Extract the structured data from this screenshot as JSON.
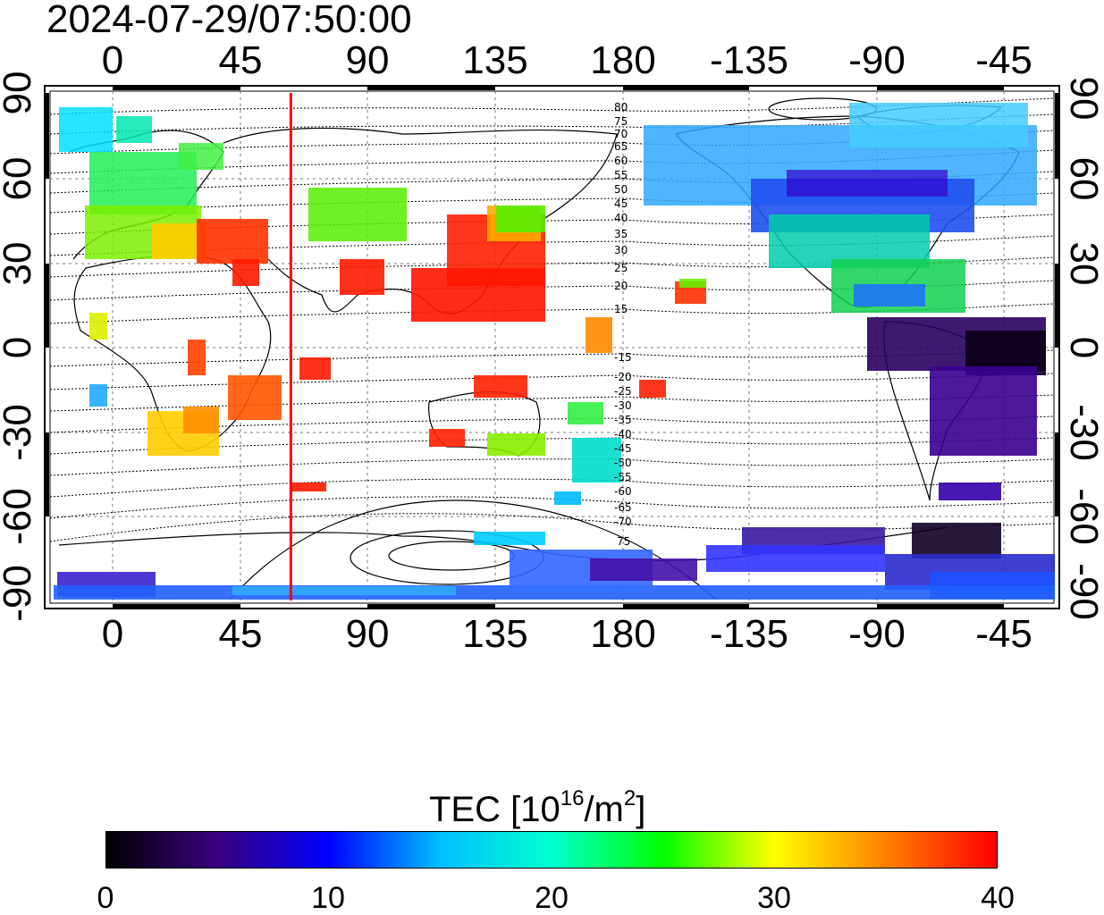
{
  "timestamp": "2024-07-29/07:50:00",
  "map": {
    "longitude_ticks": [
      "0",
      "45",
      "90",
      "135",
      "180",
      "-135",
      "-90",
      "-45"
    ],
    "latitude_ticks": [
      "90",
      "60",
      "30",
      "0",
      "-30",
      "-60",
      "-90"
    ],
    "meridian_marker_longitude": 63,
    "contour_labels_north": [
      "80",
      "75",
      "70",
      "65",
      "60",
      "55",
      "50",
      "45",
      "40",
      "35",
      "30",
      "25",
      "20",
      "15"
    ],
    "contour_labels_south": [
      "-15",
      "-20",
      "-25",
      "-30",
      "-35",
      "-40",
      "-45",
      "-50",
      "-55",
      "-60",
      "-65",
      "-70",
      "75"
    ]
  },
  "colorbar": {
    "title": "TEC  [10",
    "title_exponent": "16",
    "title_unit": "/m",
    "title_unit_exponent": "2",
    "title_close": "]",
    "ticks": [
      "0",
      "10",
      "20",
      "30",
      "40"
    ],
    "range": [
      0,
      40
    ]
  },
  "colors": {
    "marker_line": "#ff0000",
    "colormap": [
      "#000000",
      "#3a0080",
      "#0000ff",
      "#00bfff",
      "#00ffd0",
      "#00ff00",
      "#ffff00",
      "#ff8000",
      "#ff0000"
    ]
  }
}
